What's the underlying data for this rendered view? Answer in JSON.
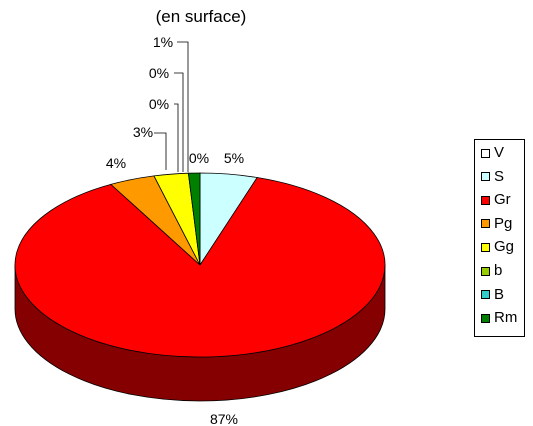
{
  "chart_data": {
    "type": "pie",
    "title": "",
    "subtitle": "(en surface)",
    "categories": [
      "V",
      "S",
      "Gr",
      "Pg",
      "Gg",
      "b",
      "B",
      "Rm"
    ],
    "values": [
      0,
      5,
      87,
      4,
      3,
      0,
      0,
      1
    ],
    "value_labels": [
      "0%",
      "5%",
      "87%",
      "4%",
      "3%",
      "0%",
      "0%",
      "1%"
    ],
    "colors": [
      "#ffffff",
      "#ccffff",
      "#ff0000",
      "#ff9900",
      "#ffff00",
      "#99cc00",
      "#33cccc",
      "#008000"
    ],
    "legend_position": "right",
    "three_d": true
  }
}
